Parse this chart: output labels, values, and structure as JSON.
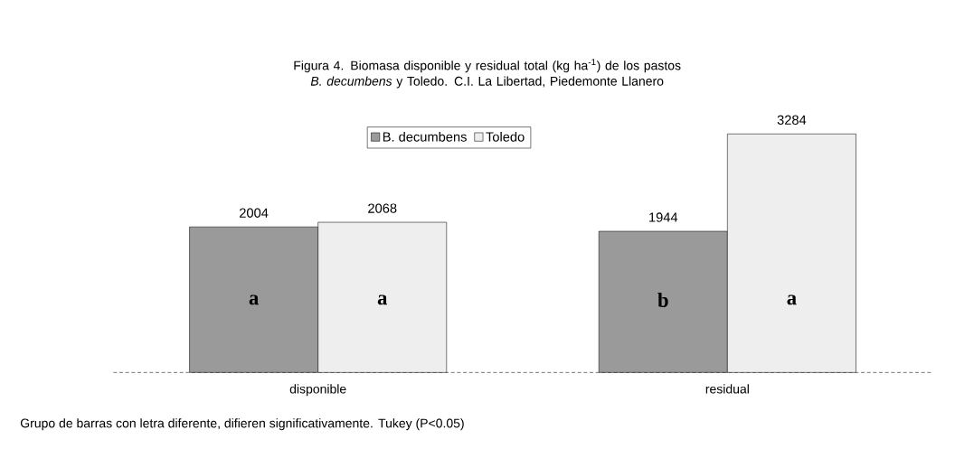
{
  "chart_data": {
    "type": "bar",
    "title": "Figura 4. Biomasa disponible y residual total (kg ha$^{-1}$) de los pastos *B. decumbens* y Toledo. C.I. La Libertad, Piedemonte Llanero",
    "categories": [
      "disponible",
      "residual"
    ],
    "series": [
      {
        "name": "B. decumbens",
        "color": "#9a9a9a",
        "values": [
          2004,
          1944
        ]
      },
      {
        "name": "Toledo",
        "color": "#eeeeee",
        "values": [
          2068,
          3284
        ]
      }
    ],
    "data_labels": true,
    "legend": "top",
    "annotations": [
      {
        "text": "a",
        "x": "disponible",
        "y": 1000
      },
      {
        "text": "a",
        "x": "disponible",
        "y": 1000
      },
      {
        "text": "b",
        "x": "residual",
        "y": 1000
      },
      {
        "text": "a",
        "x": "residual",
        "y": 1000
      },
      "Grupo de barras con letra diferente, difieren significativamente. Tukey  (P<0.05)"
    ]
  }
}
